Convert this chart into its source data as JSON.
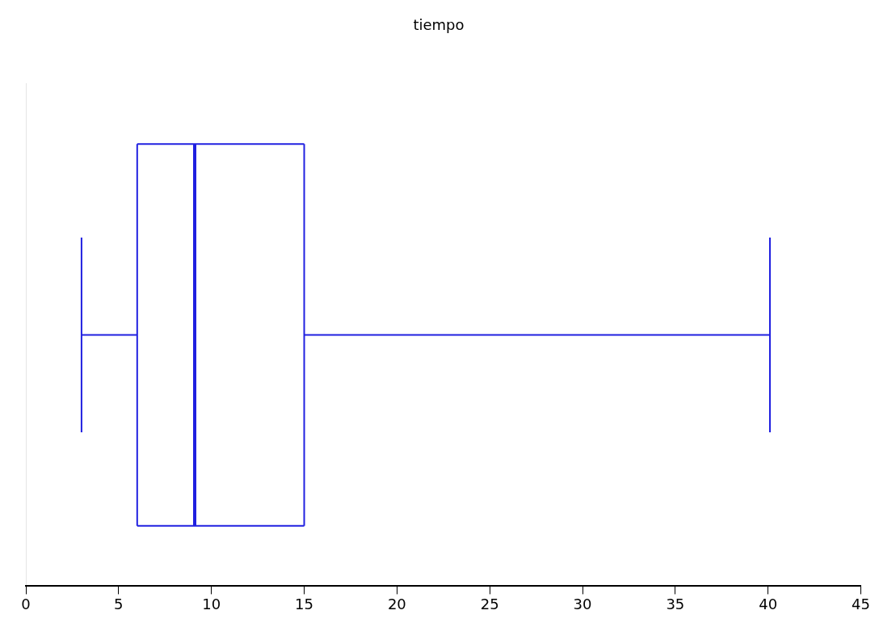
{
  "chart_data": {
    "type": "box",
    "title": "tiempo",
    "orientation": "horizontal",
    "categories": [
      null
    ],
    "boxes": [
      {
        "low": 3,
        "q1": 6,
        "median": 9.1,
        "q3": 15,
        "high": 40.1
      }
    ],
    "color": "#2020e0",
    "xlim": [
      0,
      45
    ],
    "xticks": [
      0,
      5,
      10,
      15,
      20,
      25,
      30,
      35,
      40,
      45
    ],
    "grid": false,
    "legend": false
  }
}
